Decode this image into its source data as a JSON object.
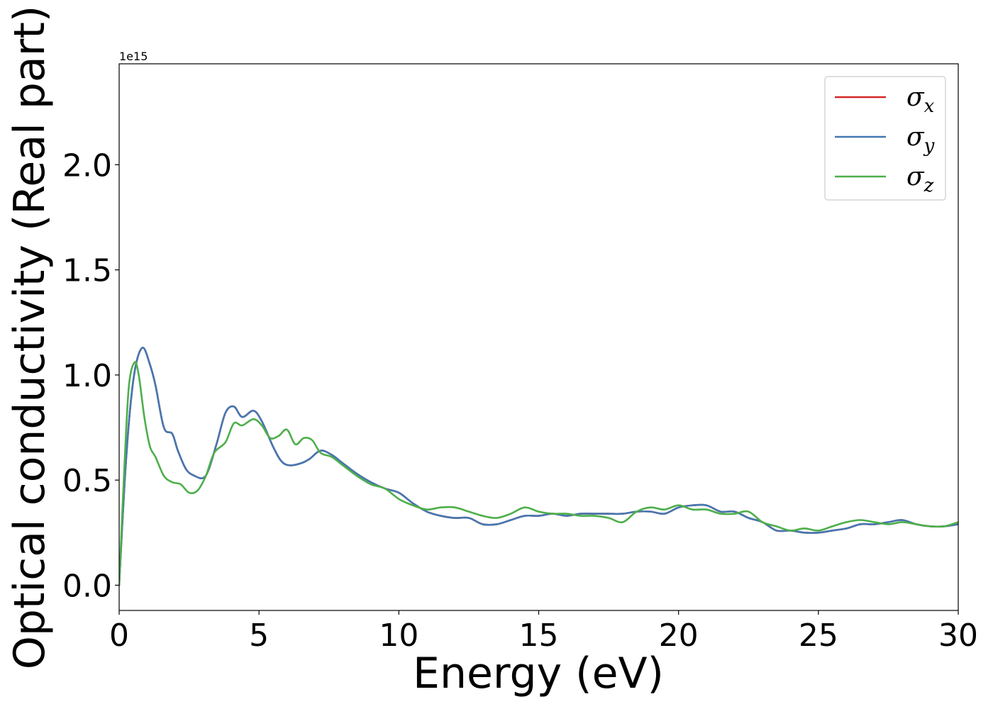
{
  "chart_data": {
    "type": "line",
    "xlabel": "Energy (eV)",
    "ylabel": "Optical conductivity (Real part)",
    "y_offset_label": "1e15",
    "xlim": [
      0,
      30
    ],
    "ylim": [
      -0.12,
      2.48
    ],
    "grid": false,
    "legend_placement": "top-right",
    "x_ticks": [
      0,
      5,
      10,
      15,
      20,
      25,
      30
    ],
    "x_tick_labels": [
      "0",
      "5",
      "10",
      "15",
      "20",
      "25",
      "30"
    ],
    "y_ticks": [
      0.0,
      0.5,
      1.0,
      1.5,
      2.0
    ],
    "y_tick_labels": [
      "0.0",
      "0.5",
      "1.0",
      "1.5",
      "2.0"
    ],
    "legend": [
      {
        "symbol": "σ",
        "sub": "x",
        "color": "#d62728"
      },
      {
        "symbol": "σ",
        "sub": "y",
        "color": "#4478b2"
      },
      {
        "symbol": "σ",
        "sub": "z",
        "color": "#4daf4a"
      }
    ],
    "series": [
      {
        "name": "σx",
        "color": "#d62728",
        "x": [
          0,
          0.2,
          0.4,
          0.6,
          0.85,
          1.1,
          1.3,
          1.6,
          1.9,
          2.1,
          2.4,
          2.7,
          3.0,
          3.2,
          3.5,
          3.8,
          4.1,
          4.4,
          4.8,
          5.1,
          5.5,
          5.8,
          6.1,
          6.5,
          6.8,
          7.2,
          7.6,
          8.0,
          8.5,
          9.0,
          9.5,
          10.0,
          10.5,
          11.0,
          11.5,
          12.0,
          12.5,
          13.0,
          13.5,
          14.0,
          14.5,
          15.0,
          15.5,
          16.0,
          16.5,
          17.0,
          17.5,
          18.0,
          18.5,
          19.0,
          19.5,
          20.0,
          20.5,
          21.0,
          21.5,
          22.0,
          22.5,
          23.0,
          23.5,
          24.0,
          24.5,
          25.0,
          25.5,
          26.0,
          26.5,
          27.0,
          27.5,
          28.0,
          28.5,
          29.0,
          29.5,
          30.0
        ],
        "y": [
          0.0,
          0.5,
          0.85,
          1.05,
          1.13,
          1.05,
          0.95,
          0.75,
          0.72,
          0.64,
          0.55,
          0.52,
          0.51,
          0.55,
          0.68,
          0.82,
          0.85,
          0.8,
          0.83,
          0.78,
          0.66,
          0.59,
          0.57,
          0.58,
          0.6,
          0.64,
          0.62,
          0.58,
          0.53,
          0.49,
          0.46,
          0.44,
          0.39,
          0.35,
          0.33,
          0.32,
          0.32,
          0.29,
          0.29,
          0.31,
          0.33,
          0.33,
          0.34,
          0.33,
          0.34,
          0.34,
          0.34,
          0.34,
          0.35,
          0.35,
          0.34,
          0.37,
          0.38,
          0.38,
          0.35,
          0.35,
          0.32,
          0.3,
          0.26,
          0.26,
          0.25,
          0.25,
          0.26,
          0.27,
          0.29,
          0.29,
          0.3,
          0.31,
          0.29,
          0.28,
          0.28,
          0.29
        ]
      },
      {
        "name": "σy",
        "color": "#4478b2",
        "x": [
          0,
          0.2,
          0.4,
          0.6,
          0.85,
          1.1,
          1.3,
          1.6,
          1.9,
          2.1,
          2.4,
          2.7,
          3.0,
          3.2,
          3.5,
          3.8,
          4.1,
          4.4,
          4.8,
          5.1,
          5.5,
          5.8,
          6.1,
          6.5,
          6.8,
          7.2,
          7.6,
          8.0,
          8.5,
          9.0,
          9.5,
          10.0,
          10.5,
          11.0,
          11.5,
          12.0,
          12.5,
          13.0,
          13.5,
          14.0,
          14.5,
          15.0,
          15.5,
          16.0,
          16.5,
          17.0,
          17.5,
          18.0,
          18.5,
          19.0,
          19.5,
          20.0,
          20.5,
          21.0,
          21.5,
          22.0,
          22.5,
          23.0,
          23.5,
          24.0,
          24.5,
          25.0,
          25.5,
          26.0,
          26.5,
          27.0,
          27.5,
          28.0,
          28.5,
          29.0,
          29.5,
          30.0
        ],
        "y": [
          0.0,
          0.5,
          0.85,
          1.05,
          1.13,
          1.05,
          0.95,
          0.75,
          0.72,
          0.64,
          0.55,
          0.52,
          0.51,
          0.55,
          0.68,
          0.82,
          0.85,
          0.8,
          0.83,
          0.78,
          0.66,
          0.59,
          0.57,
          0.58,
          0.6,
          0.64,
          0.62,
          0.58,
          0.53,
          0.49,
          0.46,
          0.44,
          0.39,
          0.35,
          0.33,
          0.32,
          0.32,
          0.29,
          0.29,
          0.31,
          0.33,
          0.33,
          0.34,
          0.33,
          0.34,
          0.34,
          0.34,
          0.34,
          0.35,
          0.35,
          0.34,
          0.37,
          0.38,
          0.38,
          0.35,
          0.35,
          0.32,
          0.3,
          0.26,
          0.26,
          0.25,
          0.25,
          0.26,
          0.27,
          0.29,
          0.29,
          0.3,
          0.31,
          0.29,
          0.28,
          0.28,
          0.29
        ]
      },
      {
        "name": "σz",
        "color": "#4daf4a",
        "x": [
          0,
          0.2,
          0.35,
          0.55,
          0.7,
          0.9,
          1.1,
          1.3,
          1.6,
          1.9,
          2.2,
          2.5,
          2.8,
          3.1,
          3.4,
          3.8,
          4.1,
          4.4,
          4.8,
          5.1,
          5.4,
          5.7,
          6.0,
          6.3,
          6.6,
          6.9,
          7.2,
          7.6,
          8.0,
          8.5,
          9.0,
          9.5,
          10.0,
          10.5,
          11.0,
          11.5,
          12.0,
          12.5,
          13.0,
          13.5,
          14.0,
          14.5,
          15.0,
          15.5,
          16.0,
          16.5,
          17.0,
          17.5,
          18.0,
          18.5,
          19.0,
          19.5,
          20.0,
          20.5,
          21.0,
          21.5,
          22.0,
          22.5,
          23.0,
          23.5,
          24.0,
          24.5,
          25.0,
          25.5,
          26.0,
          26.5,
          27.0,
          27.5,
          28.0,
          28.5,
          29.0,
          29.5,
          30.0
        ],
        "y": [
          0.0,
          0.6,
          0.95,
          1.06,
          1.0,
          0.8,
          0.66,
          0.61,
          0.52,
          0.49,
          0.48,
          0.44,
          0.45,
          0.52,
          0.63,
          0.68,
          0.77,
          0.76,
          0.79,
          0.76,
          0.7,
          0.71,
          0.74,
          0.67,
          0.7,
          0.69,
          0.63,
          0.61,
          0.57,
          0.52,
          0.48,
          0.46,
          0.41,
          0.38,
          0.36,
          0.37,
          0.37,
          0.35,
          0.33,
          0.32,
          0.34,
          0.37,
          0.35,
          0.34,
          0.34,
          0.33,
          0.33,
          0.32,
          0.3,
          0.35,
          0.37,
          0.36,
          0.38,
          0.36,
          0.36,
          0.34,
          0.34,
          0.35,
          0.3,
          0.28,
          0.26,
          0.27,
          0.26,
          0.28,
          0.3,
          0.31,
          0.3,
          0.29,
          0.3,
          0.29,
          0.28,
          0.28,
          0.3
        ]
      }
    ]
  }
}
